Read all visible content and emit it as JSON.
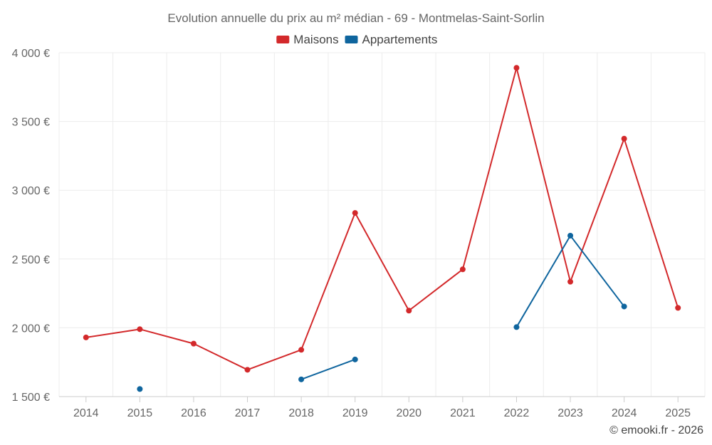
{
  "chart_data": {
    "type": "line",
    "title": "Evolution annuelle du prix au m² médian - 69 - Montmelas-Saint-Sorlin",
    "categories": [
      "2014",
      "2015",
      "2016",
      "2017",
      "2018",
      "2019",
      "2020",
      "2021",
      "2022",
      "2023",
      "2024",
      "2025"
    ],
    "y_ticks": [
      "1 500 €",
      "2 000 €",
      "2 500 €",
      "3 000 €",
      "3 500 €",
      "4 000 €"
    ],
    "ylim": [
      1500,
      4000
    ],
    "ytick_values": [
      1500,
      2000,
      2500,
      3000,
      3500,
      4000
    ],
    "grid": true,
    "legend_position": "top-center",
    "series": [
      {
        "name": "Maisons",
        "color": "#d3292b",
        "values": [
          1930,
          1990,
          1885,
          1695,
          1840,
          2835,
          2125,
          2425,
          3890,
          2335,
          3375,
          2145
        ]
      },
      {
        "name": "Appartements",
        "color": "#0f659e",
        "values": [
          null,
          1555,
          null,
          null,
          1625,
          1770,
          null,
          null,
          2005,
          2670,
          2155,
          null
        ]
      }
    ],
    "credit": "© emooki.fr - 2026"
  }
}
